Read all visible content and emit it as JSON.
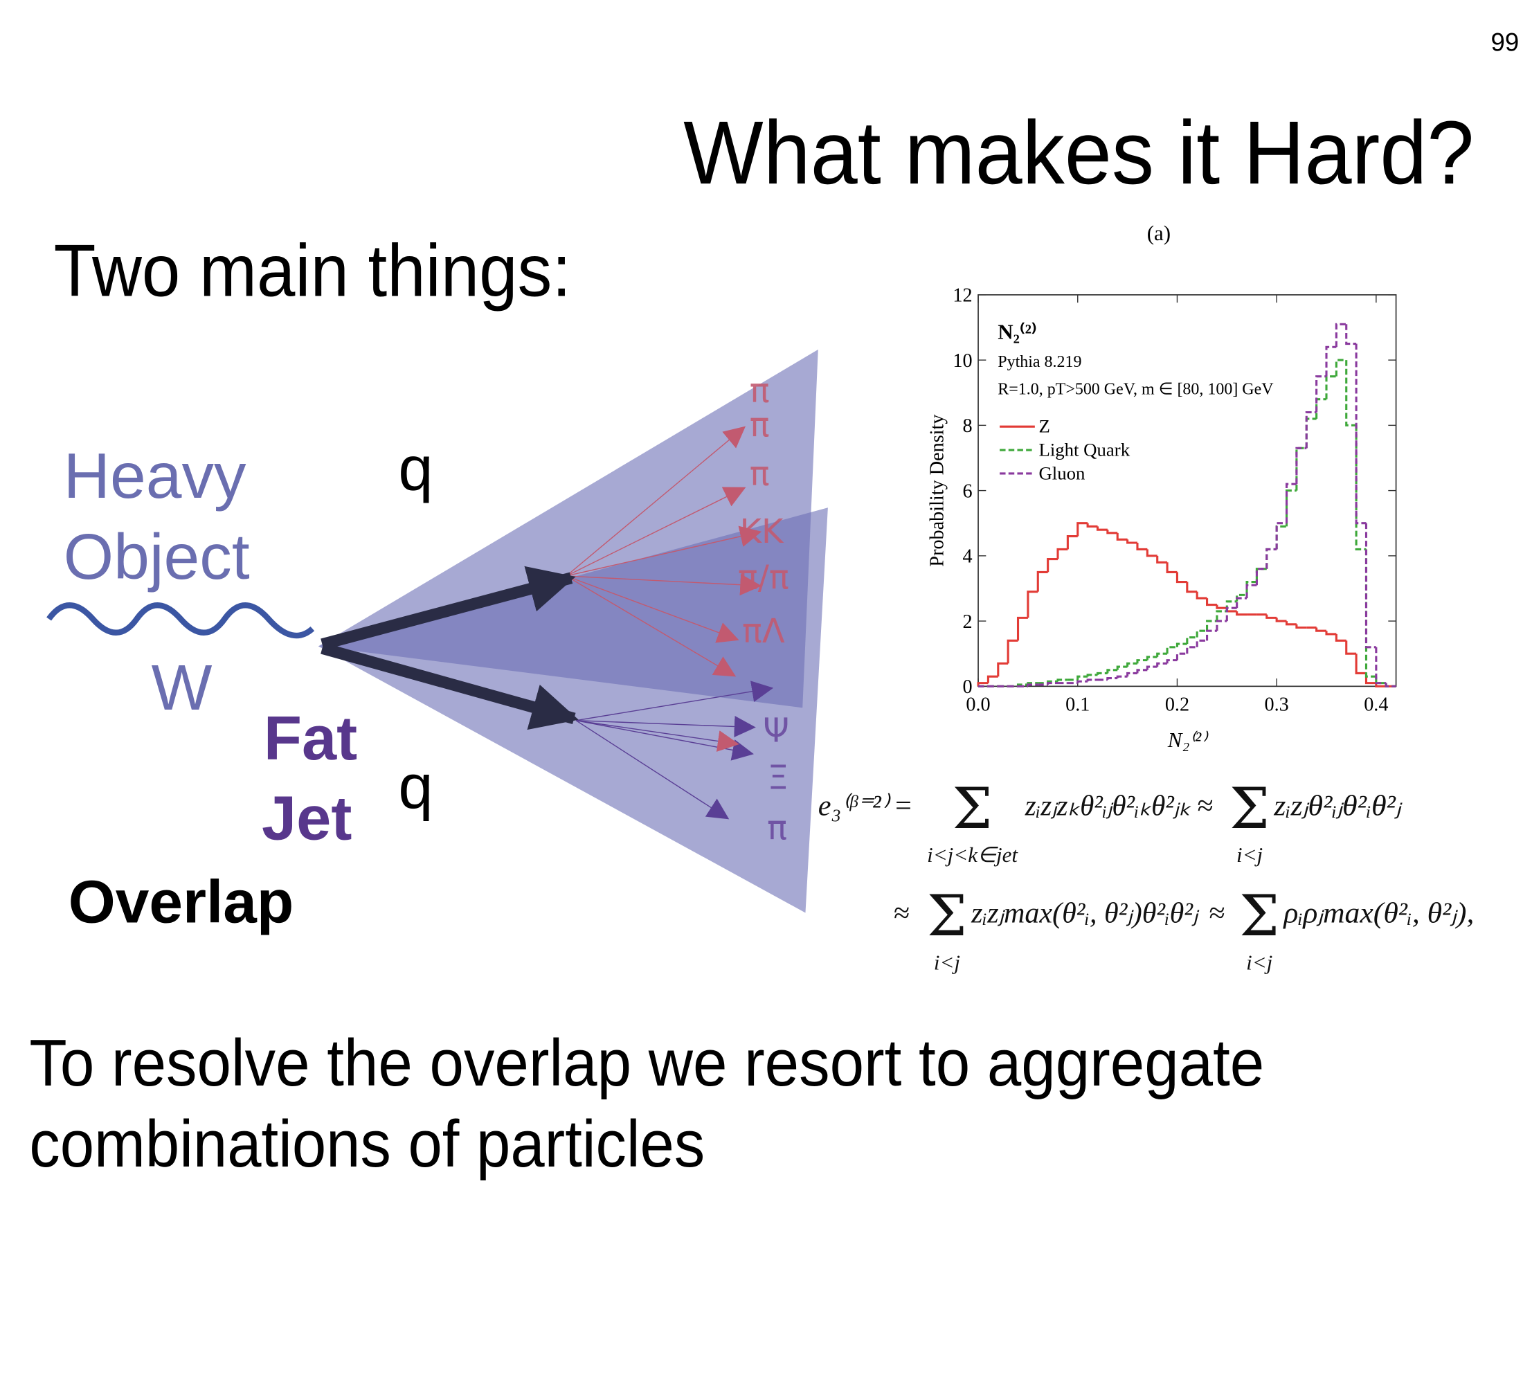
{
  "page_number": "99",
  "title": "What makes it Hard?",
  "subtitle": "Two main things:",
  "diagram": {
    "heavy_object": [
      "Heavy",
      "Object"
    ],
    "boson": "W",
    "quarks": [
      "q",
      "q"
    ],
    "fat_jet": [
      "Fat",
      "Jet"
    ],
    "overlap": "Overlap",
    "particles": [
      "π",
      "π",
      "π",
      "KK",
      "π/π",
      "πΛ",
      "Ψ",
      "Ξ",
      "π"
    ]
  },
  "formula": {
    "line1": {
      "lhs": "e₃⁽ᵝ⁼²⁾",
      "eq": "=",
      "sum1": "Σ",
      "sum1_under": "i<j<k∈jet",
      "term1": "zᵢzⱼzₖθ²ᵢⱼθ²ᵢₖθ²ⱼₖ",
      "approx": "≈",
      "sum2": "Σ",
      "sum2_under": "i<j",
      "term2": "zᵢzⱼθ²ᵢⱼθ²ᵢθ²ⱼ"
    },
    "line2": {
      "approx1": "≈",
      "sum1": "Σ",
      "sum1_under": "i<j",
      "term1": "zᵢzⱼmax(θ²ᵢ, θ²ⱼ)θ²ᵢθ²ⱼ",
      "approx2": "≈",
      "sum2": "Σ",
      "sum2_under": "i<j",
      "term2": "ρᵢρⱼmax(θ²ᵢ, θ²ⱼ),"
    }
  },
  "conclusion": [
    "To resolve the overlap we resort to aggregate",
    "combinations of particles"
  ],
  "chart_data": {
    "type": "histogram",
    "panel_label": "(a)",
    "annotations": [
      "N₂⁽²⁾",
      "Pythia 8.219",
      "R=1.0, pT>500 GeV, m ∈ [80, 100] GeV"
    ],
    "x_label": "N₂⁽²⁾",
    "y_label": "Probability Density",
    "bins": [
      0,
      0.01,
      0.02,
      0.03,
      0.04,
      0.05,
      0.06,
      0.07,
      0.08,
      0.09,
      0.1,
      0.11,
      0.12,
      0.13,
      0.14,
      0.15,
      0.16,
      0.17,
      0.18,
      0.19,
      0.2,
      0.21,
      0.22,
      0.23,
      0.24,
      0.25,
      0.26,
      0.27,
      0.28,
      0.29,
      0.3,
      0.31,
      0.32,
      0.33,
      0.34,
      0.35,
      0.36,
      0.37,
      0.38,
      0.39,
      0.4,
      0.41,
      0.42
    ],
    "series": [
      {
        "name": "Z",
        "color": "#e23b36",
        "dash": "solid",
        "values": [
          0.1,
          0.3,
          0.7,
          1.4,
          2.1,
          2.9,
          3.5,
          3.9,
          4.2,
          4.6,
          5.0,
          4.9,
          4.8,
          4.7,
          4.5,
          4.4,
          4.2,
          4.0,
          3.8,
          3.5,
          3.2,
          2.9,
          2.7,
          2.5,
          2.4,
          2.3,
          2.2,
          2.2,
          2.2,
          2.1,
          2.0,
          1.9,
          1.8,
          1.8,
          1.7,
          1.6,
          1.4,
          1.0,
          0.4,
          0.1,
          0,
          0
        ]
      },
      {
        "name": "Light Quark",
        "color": "#3ea83a",
        "dash": "dashed",
        "values": [
          0,
          0,
          0,
          0,
          0.05,
          0.1,
          0.1,
          0.15,
          0.2,
          0.2,
          0.3,
          0.35,
          0.4,
          0.5,
          0.6,
          0.7,
          0.8,
          0.9,
          1.0,
          1.2,
          1.3,
          1.5,
          1.7,
          2.0,
          2.3,
          2.6,
          2.8,
          3.2,
          3.6,
          4.2,
          4.9,
          6.0,
          7.3,
          8.2,
          8.8,
          9.5,
          10.0,
          8.0,
          4.2,
          0.3,
          0.1,
          0
        ]
      },
      {
        "name": "Gluon",
        "color": "#8a3a9e",
        "dash": "dashed",
        "values": [
          0,
          0,
          0,
          0,
          0,
          0.05,
          0.05,
          0.1,
          0.1,
          0.1,
          0.15,
          0.2,
          0.2,
          0.25,
          0.3,
          0.4,
          0.5,
          0.6,
          0.7,
          0.8,
          1.0,
          1.2,
          1.4,
          1.7,
          2.0,
          2.4,
          2.7,
          3.1,
          3.6,
          4.2,
          5.0,
          6.2,
          7.3,
          8.4,
          9.5,
          10.4,
          11.1,
          10.5,
          5.0,
          1.2,
          0.1,
          0
        ]
      }
    ],
    "xlim": [
      0,
      0.42
    ],
    "ylim": [
      0,
      12
    ],
    "xticks": [
      {
        "value": 0,
        "label": "0.0"
      },
      0.1,
      0.2,
      0.3,
      0.4
    ],
    "yticks": [
      0,
      2,
      4,
      6,
      8,
      10,
      12
    ],
    "legend": "upper left"
  }
}
